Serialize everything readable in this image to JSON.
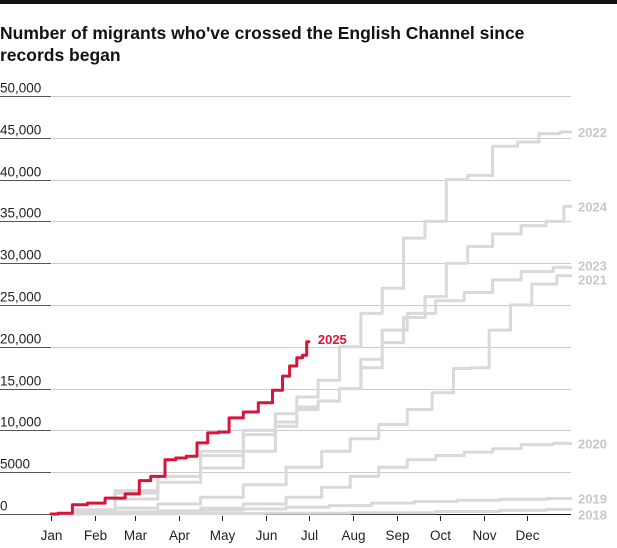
{
  "chart_data": {
    "type": "line",
    "title": "Number of migrants who've crossed the English Channel since records began",
    "xlabel": "",
    "ylabel": "",
    "x_unit": "day_of_year",
    "xlim": [
      0,
      365
    ],
    "ylim": [
      0,
      50000
    ],
    "grid": true,
    "legend": "direct-labels-right",
    "yticks": [
      0,
      5000,
      10000,
      15000,
      20000,
      25000,
      30000,
      35000,
      40000,
      45000,
      50000
    ],
    "ytick_labels": [
      "0",
      "5000",
      "10,000",
      "15,000",
      "20,000",
      "25,000",
      "30,000",
      "35,000",
      "40,000",
      "45,000",
      "50,000"
    ],
    "xticks": [
      0,
      31,
      59,
      90,
      120,
      151,
      181,
      212,
      243,
      273,
      304,
      334
    ],
    "xtick_labels": [
      "Jan",
      "Feb",
      "Mar",
      "Apr",
      "May",
      "Jun",
      "Jul",
      "Aug",
      "Sep",
      "Oct",
      "Nov",
      "Dec"
    ],
    "colors": {
      "highlight": "#d6153c",
      "muted": "#d9d9d9",
      "muted_label": "#c8c8c8",
      "grid": "#cccccc",
      "axis": "#121212"
    },
    "series": [
      {
        "name": "2018",
        "highlight": false,
        "x": [
          0,
          60,
          120,
          180,
          240,
          300,
          330,
          365
        ],
        "y": [
          0,
          20,
          60,
          100,
          160,
          300,
          450,
          550
        ]
      },
      {
        "name": "2019",
        "highlight": false,
        "x": [
          0,
          30,
          60,
          90,
          120,
          150,
          180,
          210,
          240,
          270,
          300,
          330,
          365
        ],
        "y": [
          0,
          50,
          150,
          300,
          450,
          600,
          800,
          1000,
          1300,
          1500,
          1650,
          1750,
          1850
        ]
      },
      {
        "name": "2020",
        "highlight": false,
        "x": [
          0,
          30,
          60,
          90,
          120,
          150,
          180,
          200,
          220,
          240,
          260,
          280,
          300,
          320,
          340,
          365
        ],
        "y": [
          0,
          100,
          250,
          400,
          700,
          1200,
          2000,
          3200,
          4500,
          5600,
          6500,
          7000,
          7400,
          7800,
          8300,
          8450
        ]
      },
      {
        "name": "2021",
        "highlight": false,
        "x": [
          0,
          30,
          60,
          90,
          120,
          150,
          180,
          200,
          220,
          240,
          260,
          275,
          290,
          300,
          315,
          330,
          345,
          365
        ],
        "y": [
          0,
          300,
          700,
          1200,
          2000,
          3500,
          5600,
          7500,
          9000,
          10700,
          12500,
          14500,
          17400,
          17500,
          22000,
          25000,
          27500,
          28500
        ]
      },
      {
        "name": "2022",
        "highlight": false,
        "x": [
          0,
          30,
          60,
          90,
          120,
          150,
          165,
          180,
          195,
          210,
          225,
          240,
          255,
          270,
          285,
          300,
          320,
          335,
          350,
          365
        ],
        "y": [
          0,
          500,
          1800,
          4500,
          7500,
          10000,
          12000,
          14000,
          16000,
          20000,
          24000,
          27000,
          33000,
          35000,
          40000,
          40500,
          44000,
          44500,
          45500,
          45700
        ]
      },
      {
        "name": "2023",
        "highlight": false,
        "x": [
          0,
          30,
          60,
          90,
          120,
          150,
          165,
          180,
          195,
          210,
          225,
          240,
          260,
          280,
          300,
          320,
          340,
          365
        ],
        "y": [
          0,
          400,
          2800,
          3800,
          5500,
          7500,
          10500,
          12500,
          13500,
          15000,
          18500,
          22000,
          24000,
          25500,
          26500,
          28000,
          29000,
          29500
        ]
      },
      {
        "name": "2024",
        "highlight": false,
        "x": [
          0,
          30,
          60,
          90,
          120,
          150,
          165,
          180,
          195,
          210,
          225,
          240,
          255,
          270,
          285,
          300,
          320,
          340,
          355,
          365
        ],
        "y": [
          0,
          300,
          2500,
          4500,
          7000,
          9500,
          11000,
          12800,
          13500,
          15000,
          17500,
          20500,
          23500,
          26000,
          30000,
          32000,
          33500,
          34500,
          35000,
          36800
        ]
      },
      {
        "name": "2025",
        "highlight": true,
        "x": [
          0,
          10,
          20,
          31,
          45,
          59,
          65,
          75,
          85,
          90,
          100,
          105,
          115,
          120,
          130,
          140,
          151,
          160,
          165,
          170,
          175,
          178,
          181
        ],
        "y": [
          0,
          100,
          1100,
          1300,
          1900,
          2400,
          4000,
          4500,
          6500,
          6700,
          6900,
          8500,
          9700,
          9800,
          11500,
          12200,
          13300,
          14800,
          16500,
          17700,
          18700,
          19000,
          20600
        ]
      }
    ]
  }
}
